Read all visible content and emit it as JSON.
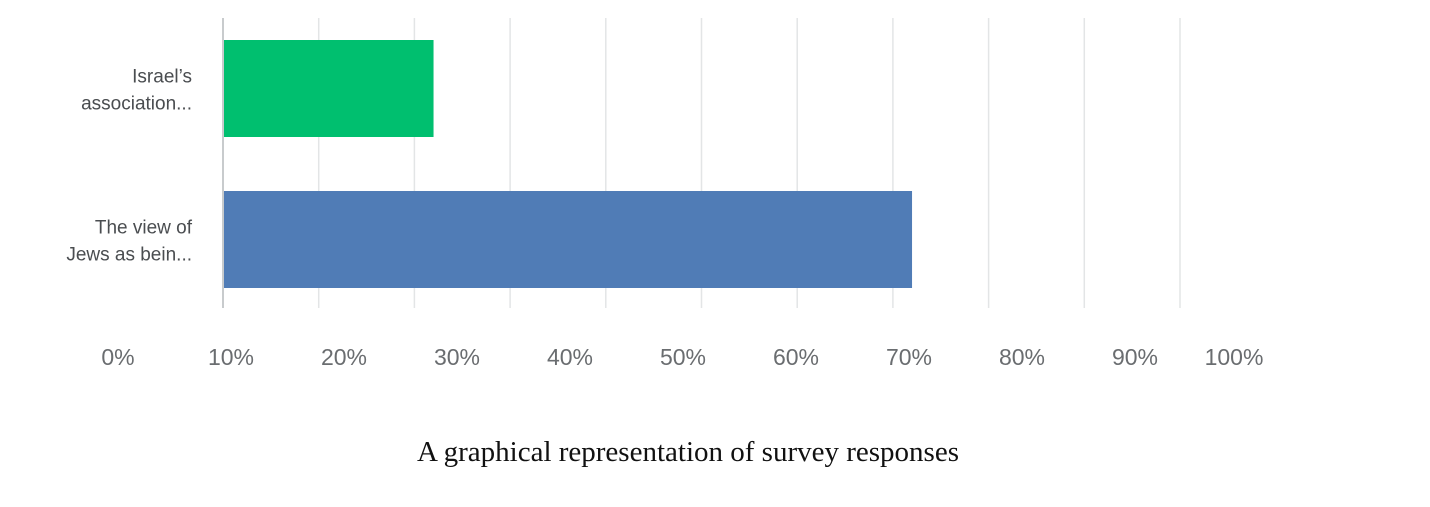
{
  "chart_data": {
    "type": "bar",
    "orientation": "horizontal",
    "categories": [
      [
        "Israel’s",
        "association..."
      ],
      [
        "The view of",
        "Jews as bein..."
      ]
    ],
    "values": [
      22,
      72
    ],
    "bar_colors": [
      "#00bf6f",
      "#507cb6"
    ],
    "xlim": [
      0,
      100
    ],
    "x_ticks": [
      "0%",
      "10%",
      "20%",
      "30%",
      "40%",
      "50%",
      "60%",
      "70%",
      "80%",
      "90%",
      "100%"
    ],
    "grid": true,
    "legend": "none"
  },
  "caption": "A graphical representation of survey responses"
}
